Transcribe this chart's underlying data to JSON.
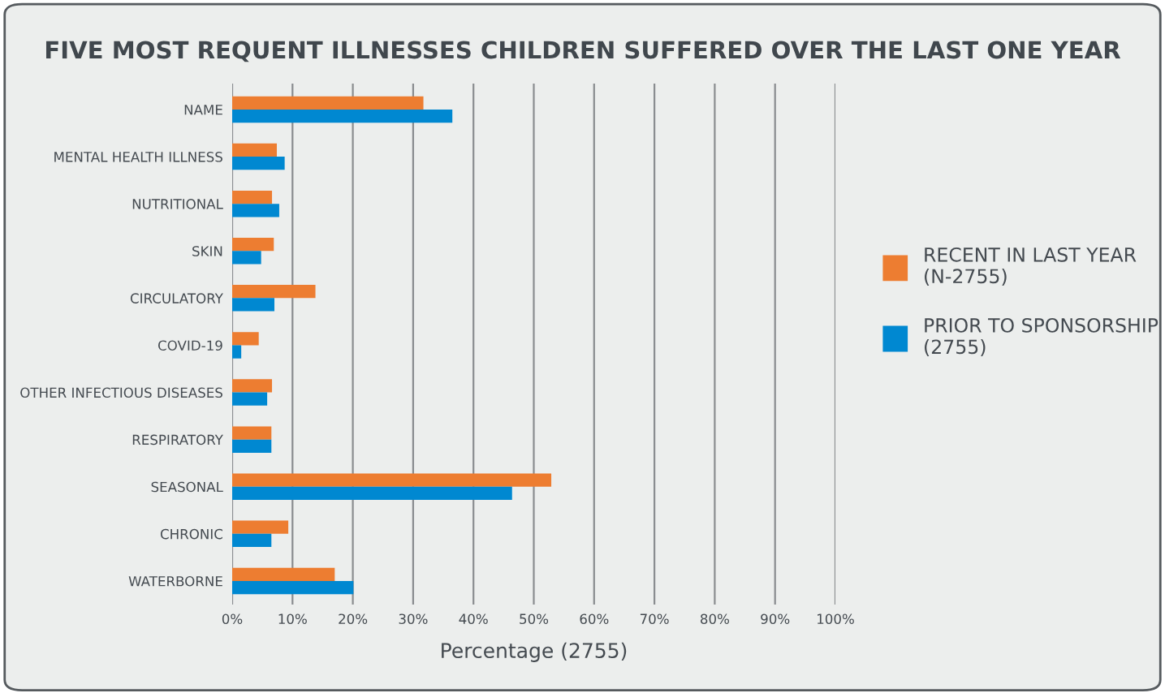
{
  "chart_data": {
    "type": "bar",
    "orientation": "horizontal",
    "title": "FIVE MOST REQUENT ILLNESSES CHILDREN SUFFERED OVER THE LAST ONE YEAR",
    "xlabel": "Percentage (2755)",
    "categories": [
      "NAME",
      "MENTAL HEALTH ILLNESS",
      "NUTRITIONAL",
      "SKIN",
      "CIRCULATORY",
      "COVID-19",
      "OTHER INFECTIOUS DISEASES",
      "RESPIRATORY",
      "SEASONAL",
      "CHRONIC",
      "WATERBORNE"
    ],
    "series": [
      {
        "name": "RECENT IN LAST YEAR\n(N-2755)",
        "color": "#ed7d31",
        "values": [
          31.7,
          7.4,
          6.6,
          6.9,
          13.8,
          4.4,
          6.6,
          6.5,
          52.9,
          9.3,
          17.0
        ]
      },
      {
        "name": "PRIOR TO SPONSORSHIP\n(2755)",
        "color": "#0088d1",
        "values": [
          36.5,
          8.7,
          7.8,
          4.8,
          7.0,
          1.5,
          5.8,
          6.5,
          46.4,
          6.5,
          20.1
        ]
      }
    ],
    "xlim": [
      0,
      100
    ],
    "xticks": [
      {
        "value": 0,
        "label": "0%"
      },
      {
        "value": 10,
        "label": "10%"
      },
      {
        "value": 20,
        "label": "20%"
      },
      {
        "value": 30,
        "label": "30%"
      },
      {
        "value": 40,
        "label": "40%"
      },
      {
        "value": 50,
        "label": "50%"
      },
      {
        "value": 60,
        "label": "60%"
      },
      {
        "value": 70,
        "label": "70%"
      },
      {
        "value": 80,
        "label": "80%"
      },
      {
        "value": 90,
        "label": "90%"
      },
      {
        "value": 100,
        "label": "100%"
      }
    ],
    "grid": "x",
    "legend": "right"
  }
}
